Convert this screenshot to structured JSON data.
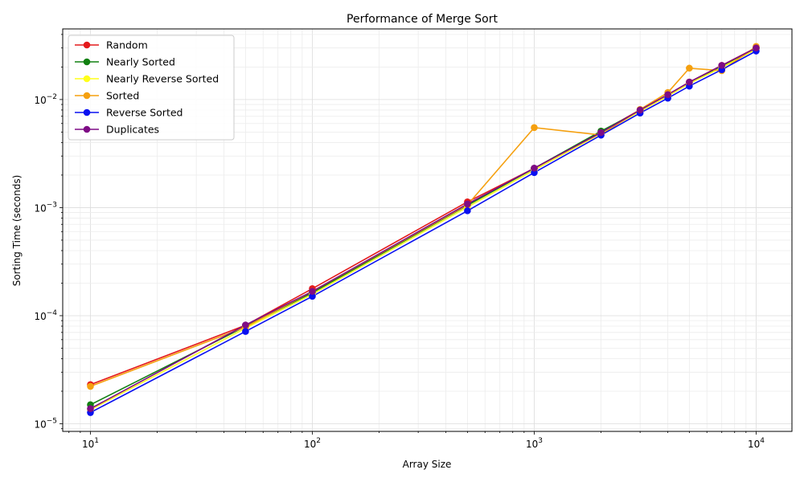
{
  "chart_data": {
    "type": "line",
    "title": "Performance of Merge Sort",
    "xlabel": "Array Size",
    "ylabel": "Sorting Time (seconds)",
    "x_scale": "log",
    "y_scale": "log",
    "xlim": [
      7.5,
      14500
    ],
    "ylim": [
      8.5e-06,
      0.045
    ],
    "grid": true,
    "legend_position": "top-left",
    "x_ticks": [
      {
        "value": 10,
        "base": "10",
        "exp": "1"
      },
      {
        "value": 100,
        "base": "10",
        "exp": "2"
      },
      {
        "value": 1000,
        "base": "10",
        "exp": "3"
      },
      {
        "value": 10000,
        "base": "10",
        "exp": "4"
      }
    ],
    "y_ticks": [
      {
        "value": 1e-05,
        "base": "10",
        "exp": "−5"
      },
      {
        "value": 0.0001,
        "base": "10",
        "exp": "−4"
      },
      {
        "value": 0.001,
        "base": "10",
        "exp": "−3"
      },
      {
        "value": 0.01,
        "base": "10",
        "exp": "−2"
      }
    ],
    "series": [
      {
        "name": "Random",
        "color": "#e41a1c",
        "x": [
          10,
          50,
          100,
          500,
          1000,
          2000,
          3000,
          4000,
          5000,
          7000,
          10000
        ],
        "y": [
          2.3e-05,
          8.15e-05,
          0.000178,
          0.00113,
          0.00231,
          0.00502,
          0.00805,
          0.0111,
          0.0145,
          0.0207,
          0.0302
        ]
      },
      {
        "name": "Nearly Sorted",
        "color": "#118011",
        "x": [
          10,
          50,
          100,
          500,
          1000,
          2000,
          3000,
          4000,
          5000,
          7000,
          10000
        ],
        "y": [
          1.5e-05,
          7.95e-05,
          0.000163,
          0.00105,
          0.00231,
          0.0051,
          0.0079,
          0.011,
          0.0143,
          0.0204,
          0.0298
        ]
      },
      {
        "name": "Nearly Reverse Sorted",
        "color": "#ffff1a",
        "x": [
          10,
          50,
          100,
          500,
          1000,
          2000,
          3000,
          4000,
          5000,
          7000,
          10000
        ],
        "y": [
          1.35e-05,
          7.65e-05,
          0.000158,
          0.00101,
          0.00223,
          0.00485,
          0.0078,
          0.0108,
          0.0141,
          0.0198,
          0.0292
        ]
      },
      {
        "name": "Sorted",
        "color": "#f5a00f",
        "x": [
          10,
          50,
          100,
          500,
          1000,
          2000,
          3000,
          4000,
          5000,
          7000,
          10000
        ],
        "y": [
          2.22e-05,
          7.85e-05,
          0.000168,
          0.00106,
          0.0055,
          0.0047,
          0.0081,
          0.0116,
          0.0195,
          0.0185,
          0.031
        ]
      },
      {
        "name": "Reverse Sorted",
        "color": "#0a10f0",
        "x": [
          10,
          50,
          100,
          500,
          1000,
          2000,
          3000,
          4000,
          5000,
          7000,
          10000
        ],
        "y": [
          1.27e-05,
          7.15e-05,
          0.000151,
          0.000935,
          0.00211,
          0.00468,
          0.0075,
          0.0103,
          0.0133,
          0.0189,
          0.0281
        ]
      },
      {
        "name": "Duplicates",
        "color": "#7e0c85",
        "x": [
          10,
          50,
          100,
          500,
          1000,
          2000,
          3000,
          4000,
          5000,
          7000,
          10000
        ],
        "y": [
          1.38e-05,
          8.2e-05,
          0.000168,
          0.00108,
          0.00232,
          0.00495,
          0.008,
          0.0111,
          0.0145,
          0.0207,
          0.03
        ]
      }
    ]
  }
}
